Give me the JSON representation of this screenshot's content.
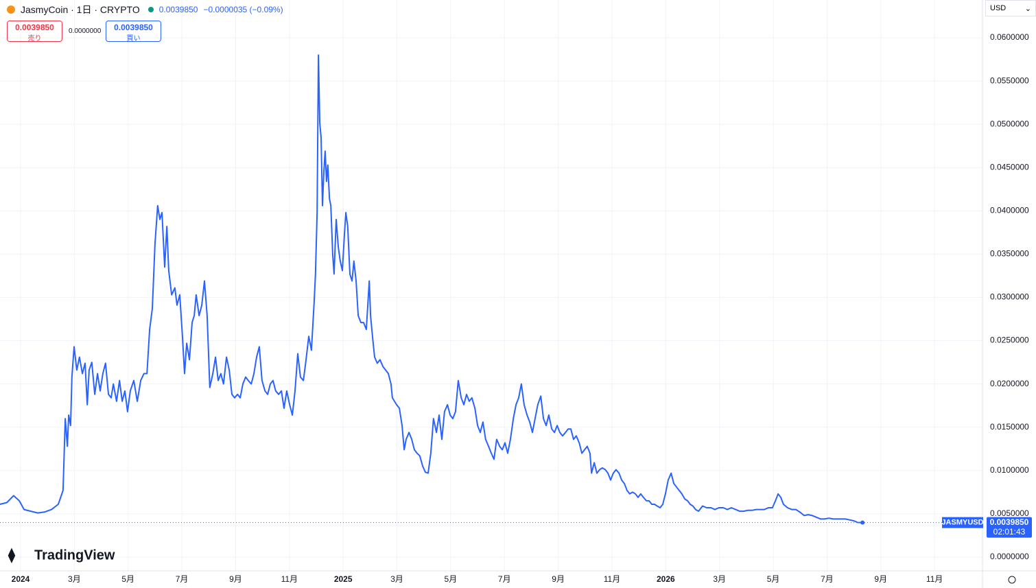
{
  "header": {
    "symbol": "JasmyCoin · 1日 · CRYPTO",
    "price": "0.0039850",
    "change": "−0.0000035 (−0.09%)",
    "currency": "USD"
  },
  "order_panel": {
    "sell_price": "0.0039850",
    "sell_label": "売り",
    "spread": "0.0000000",
    "buy_price": "0.0039850",
    "buy_label": "買い"
  },
  "brand": "TradingView",
  "chart_data": {
    "type": "line",
    "grid": true,
    "x": [
      -0.77,
      -0.51,
      -0.26,
      -0.05,
      0.13,
      0.38,
      0.64,
      0.89,
      1.15,
      1.4,
      1.58,
      1.66,
      1.74,
      1.79,
      1.86,
      1.91,
      1.99,
      2.09,
      2.19,
      2.3,
      2.4,
      2.48,
      2.55,
      2.65,
      2.76,
      2.86,
      2.96,
      3.06,
      3.16,
      3.27,
      3.37,
      3.45,
      3.57,
      3.68,
      3.78,
      3.88,
      3.98,
      4.08,
      4.21,
      4.34,
      4.47,
      4.59,
      4.7,
      4.8,
      4.9,
      5.0,
      5.1,
      5.18,
      5.26,
      5.36,
      5.44,
      5.51,
      5.62,
      5.74,
      5.82,
      5.92,
      6.02,
      6.1,
      6.18,
      6.28,
      6.38,
      6.46,
      6.53,
      6.64,
      6.74,
      6.84,
      6.94,
      7.04,
      7.15,
      7.25,
      7.35,
      7.45,
      7.55,
      7.66,
      7.76,
      7.86,
      7.96,
      8.07,
      8.17,
      8.27,
      8.37,
      8.47,
      8.58,
      8.68,
      8.78,
      8.88,
      8.98,
      9.09,
      9.19,
      9.29,
      9.39,
      9.49,
      9.6,
      9.7,
      9.8,
      9.9,
      10.01,
      10.11,
      10.21,
      10.31,
      10.41,
      10.52,
      10.62,
      10.72,
      10.82,
      10.92,
      10.97,
      11.03,
      11.08,
      11.13,
      11.18,
      11.23,
      11.28,
      11.33,
      11.38,
      11.43,
      11.49,
      11.54,
      11.61,
      11.66,
      11.74,
      11.82,
      11.89,
      11.97,
      12.05,
      12.1,
      12.17,
      12.25,
      12.33,
      12.4,
      12.48,
      12.56,
      12.66,
      12.76,
      12.86,
      12.97,
      13.02,
      13.09,
      13.17,
      13.27,
      13.37,
      13.48,
      13.58,
      13.68,
      13.78,
      13.83,
      13.91,
      13.99,
      14.09,
      14.19,
      14.27,
      14.34,
      14.45,
      14.55,
      14.65,
      14.75,
      14.85,
      14.96,
      15.06,
      15.16,
      15.26,
      15.36,
      15.47,
      15.57,
      15.67,
      15.77,
      15.88,
      15.98,
      16.08,
      16.18,
      16.28,
      16.39,
      16.49,
      16.59,
      16.69,
      16.79,
      16.9,
      17.0,
      17.1,
      17.2,
      17.3,
      17.41,
      17.51,
      17.61,
      17.71,
      17.82,
      17.92,
      18.02,
      18.12,
      18.22,
      18.33,
      18.43,
      18.53,
      18.63,
      18.73,
      18.84,
      18.94,
      19.04,
      19.14,
      19.24,
      19.35,
      19.45,
      19.55,
      19.65,
      19.76,
      19.86,
      19.96,
      20.06,
      20.16,
      20.27,
      20.37,
      20.47,
      20.57,
      20.67,
      20.78,
      20.88,
      20.98,
      21.08,
      21.18,
      21.24,
      21.34,
      21.44,
      21.54,
      21.64,
      21.75,
      21.85,
      21.95,
      22.05,
      22.15,
      22.26,
      22.36,
      22.46,
      22.56,
      22.66,
      22.77,
      22.87,
      22.97,
      23.07,
      23.17,
      23.28,
      23.38,
      23.48,
      23.58,
      23.68,
      23.79,
      23.89,
      23.99,
      24.09,
      24.2,
      24.3,
      24.4,
      24.5,
      24.6,
      24.71,
      24.81,
      24.91,
      25.01,
      25.11,
      25.22,
      25.37,
      25.52,
      25.68,
      25.83,
      25.98,
      26.14,
      26.29,
      26.44,
      26.6,
      26.75,
      26.9,
      27.05,
      27.21,
      27.36,
      27.51,
      27.67,
      27.82,
      27.97,
      28.08,
      28.18,
      28.28,
      28.38,
      28.53,
      28.69,
      28.84,
      28.99,
      29.15,
      29.3,
      29.45,
      29.61,
      29.76,
      29.91,
      30.07,
      30.22,
      30.37,
      30.53,
      30.68,
      30.83,
      30.99,
      31.14,
      31.32
    ],
    "series": [
      {
        "name": "JASMYUSD",
        "color": "#2962ff",
        "values": [
          0.0061,
          0.0063,
          0.0071,
          0.0065,
          0.0055,
          0.0053,
          0.0051,
          0.0052,
          0.0055,
          0.0061,
          0.0077,
          0.016,
          0.0128,
          0.0164,
          0.0152,
          0.0208,
          0.0243,
          0.0216,
          0.0231,
          0.0212,
          0.0224,
          0.0176,
          0.0216,
          0.0225,
          0.0188,
          0.0212,
          0.0192,
          0.0212,
          0.0224,
          0.0188,
          0.0184,
          0.02,
          0.018,
          0.0204,
          0.018,
          0.0192,
          0.0168,
          0.0192,
          0.0204,
          0.018,
          0.0204,
          0.0212,
          0.0212,
          0.0263,
          0.0287,
          0.0362,
          0.0406,
          0.039,
          0.0398,
          0.0335,
          0.0382,
          0.0331,
          0.0303,
          0.0311,
          0.0291,
          0.0303,
          0.0255,
          0.0212,
          0.0247,
          0.0228,
          0.0271,
          0.0279,
          0.0303,
          0.0279,
          0.0291,
          0.0319,
          0.0279,
          0.0196,
          0.0212,
          0.0231,
          0.0204,
          0.0212,
          0.02,
          0.0231,
          0.0216,
          0.0188,
          0.0184,
          0.0188,
          0.0184,
          0.02,
          0.0208,
          0.0204,
          0.02,
          0.0212,
          0.0231,
          0.0243,
          0.0204,
          0.0192,
          0.0188,
          0.02,
          0.0204,
          0.0192,
          0.0188,
          0.0192,
          0.0172,
          0.0192,
          0.0176,
          0.0164,
          0.0192,
          0.0235,
          0.0208,
          0.0204,
          0.0228,
          0.0255,
          0.0239,
          0.0295,
          0.0327,
          0.0398,
          0.058,
          0.0501,
          0.0485,
          0.0406,
          0.0445,
          0.0469,
          0.0434,
          0.0453,
          0.0414,
          0.0406,
          0.035,
          0.0327,
          0.039,
          0.0358,
          0.0342,
          0.0331,
          0.0374,
          0.0398,
          0.0382,
          0.0327,
          0.0319,
          0.0342,
          0.0319,
          0.0279,
          0.0271,
          0.0271,
          0.0263,
          0.0319,
          0.0279,
          0.0255,
          0.0231,
          0.0224,
          0.0228,
          0.022,
          0.0216,
          0.0212,
          0.02,
          0.0184,
          0.018,
          0.0176,
          0.0172,
          0.0152,
          0.0124,
          0.0136,
          0.0144,
          0.0136,
          0.0124,
          0.012,
          0.0117,
          0.0105,
          0.0098,
          0.0097,
          0.012,
          0.016,
          0.0144,
          0.0164,
          0.0136,
          0.0168,
          0.0176,
          0.0164,
          0.016,
          0.0168,
          0.0204,
          0.0184,
          0.0176,
          0.0188,
          0.018,
          0.0184,
          0.0172,
          0.0152,
          0.0144,
          0.0156,
          0.0136,
          0.0128,
          0.012,
          0.0113,
          0.0136,
          0.0128,
          0.0124,
          0.0132,
          0.012,
          0.0136,
          0.016,
          0.0176,
          0.0184,
          0.02,
          0.0176,
          0.0164,
          0.0156,
          0.0144,
          0.016,
          0.0176,
          0.0186,
          0.016,
          0.0152,
          0.0164,
          0.0148,
          0.0144,
          0.0152,
          0.0144,
          0.014,
          0.0144,
          0.0148,
          0.0148,
          0.0136,
          0.014,
          0.0132,
          0.012,
          0.0124,
          0.0128,
          0.012,
          0.0097,
          0.0109,
          0.0097,
          0.0101,
          0.0103,
          0.0101,
          0.0097,
          0.0089,
          0.0097,
          0.0101,
          0.0097,
          0.0089,
          0.0085,
          0.0077,
          0.0073,
          0.0075,
          0.0073,
          0.0069,
          0.0073,
          0.0069,
          0.0065,
          0.0065,
          0.0061,
          0.0061,
          0.0059,
          0.0057,
          0.0061,
          0.0073,
          0.0089,
          0.0097,
          0.0085,
          0.0081,
          0.0077,
          0.0073,
          0.0067,
          0.0065,
          0.0061,
          0.0059,
          0.0055,
          0.0053,
          0.0059,
          0.0057,
          0.0057,
          0.0055,
          0.0057,
          0.0057,
          0.0055,
          0.0057,
          0.0055,
          0.0053,
          0.0053,
          0.0054,
          0.0054,
          0.0055,
          0.0055,
          0.0055,
          0.0057,
          0.0057,
          0.0065,
          0.0073,
          0.0069,
          0.0061,
          0.0057,
          0.0055,
          0.0055,
          0.0052,
          0.0048,
          0.0049,
          0.0048,
          0.0046,
          0.0044,
          0.0044,
          0.0045,
          0.0044,
          0.0044,
          0.0044,
          0.0044,
          0.0043,
          0.0042,
          0.004,
          0.003985
        ]
      }
    ],
    "price_label": {
      "price": "0.0039850",
      "countdown": "02:01:43"
    },
    "xlim": [
      -0.766,
      35.783
    ],
    "xticks": [
      {
        "value": 0,
        "label": "2024"
      },
      {
        "value": 2,
        "label": "3月"
      },
      {
        "value": 4,
        "label": "5月"
      },
      {
        "value": 6,
        "label": "7月"
      },
      {
        "value": 8,
        "label": "9月"
      },
      {
        "value": 10,
        "label": "11月"
      },
      {
        "value": 12,
        "label": "2025"
      },
      {
        "value": 14,
        "label": "3月"
      },
      {
        "value": 16,
        "label": "5月"
      },
      {
        "value": 18,
        "label": "7月"
      },
      {
        "value": 20,
        "label": "9月"
      },
      {
        "value": 22,
        "label": "11月"
      },
      {
        "value": 24,
        "label": "2026"
      },
      {
        "value": 26,
        "label": "3月"
      },
      {
        "value": 28,
        "label": "5月"
      },
      {
        "value": 30,
        "label": "7月"
      },
      {
        "value": 32,
        "label": "9月"
      },
      {
        "value": 34,
        "label": "11月"
      }
    ],
    "ylim": [
      -0.00159,
      0.06436
    ],
    "yticks": [
      {
        "value": 0,
        "label": "0.0000000"
      },
      {
        "value": 0.005,
        "label": "0.0050000"
      },
      {
        "value": 0.01,
        "label": "0.0100000"
      },
      {
        "value": 0.015,
        "label": "0.0150000"
      },
      {
        "value": 0.02,
        "label": "0.0200000"
      },
      {
        "value": 0.025,
        "label": "0.0250000"
      },
      {
        "value": 0.03,
        "label": "0.0300000"
      },
      {
        "value": 0.035,
        "label": "0.0350000"
      },
      {
        "value": 0.04,
        "label": "0.0400000"
      },
      {
        "value": 0.045,
        "label": "0.0450000"
      },
      {
        "value": 0.05,
        "label": "0.0500000"
      },
      {
        "value": 0.055,
        "label": "0.0550000"
      },
      {
        "value": 0.06,
        "label": "0.0600000"
      }
    ]
  }
}
